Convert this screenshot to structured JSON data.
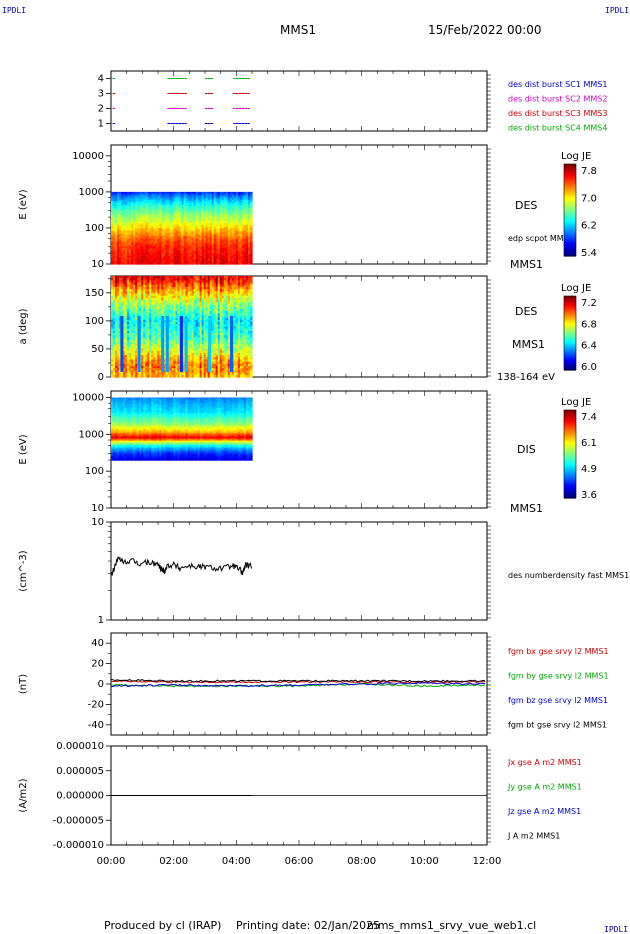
{
  "header": {
    "corner_tl": "IPDLI",
    "corner_tr": "IPDLI",
    "corner_br": "IPDLI",
    "spacecraft": "MMS1",
    "date": "15/Feb/2022 00:00"
  },
  "footer": {
    "producer": "Produced by cl (IRAP)",
    "printing": "Printing date: 02/Jan/2025",
    "filename": "mms_mms1_srvy_vue_web1.cl"
  },
  "time_axis": {
    "range_hours": [
      0,
      12
    ],
    "ticks": [
      "00:00",
      "02:00",
      "04:00",
      "06:00",
      "08:00",
      "10:00",
      "12:00"
    ],
    "data_end_hours": 4.5
  },
  "chart_data": [
    {
      "type": "scatter",
      "panel": "burst-availability",
      "ylim": [
        0.5,
        4.5
      ],
      "yticks": [
        "1",
        "2",
        "3",
        "4"
      ],
      "series": [
        {
          "name": "des dist burst SC1 MMS1",
          "color": "#0000cc",
          "y": 1,
          "segments": [
            [
              0.05,
              0.1
            ],
            [
              1.8,
              2.4
            ],
            [
              3.0,
              3.2
            ],
            [
              3.9,
              4.4
            ]
          ]
        },
        {
          "name": "des dist burst SC2 MMS2",
          "color": "#cc00cc",
          "y": 2,
          "segments": [
            [
              0.05,
              0.1
            ],
            [
              1.8,
              2.4
            ],
            [
              3.0,
              3.2
            ],
            [
              3.9,
              4.4
            ]
          ]
        },
        {
          "name": "des dist burst SC3 MMS3",
          "color": "#cc0000",
          "y": 3,
          "segments": [
            [
              0.05,
              0.1
            ],
            [
              1.8,
              2.4
            ],
            [
              3.0,
              3.2
            ],
            [
              3.9,
              4.4
            ]
          ]
        },
        {
          "name": "des dist burst SC4 MMS4",
          "color": "#00aa00",
          "y": 4,
          "segments": [
            [
              0.05,
              0.1
            ],
            [
              1.8,
              2.4
            ],
            [
              3.0,
              3.2
            ],
            [
              3.9,
              4.4
            ]
          ]
        }
      ]
    },
    {
      "type": "heatmap",
      "panel": "des-energy-spectrogram",
      "ylabel": "E (eV)",
      "yscale": "log",
      "ylim": [
        10,
        20000
      ],
      "yticks": [
        "10",
        "100",
        "1000",
        "10000"
      ],
      "instrument": "DES",
      "overlay_label": "edp scpot MMS1",
      "spacecraft": "MMS1",
      "colorbar": {
        "title": "Log JE",
        "ticks": [
          "7.8",
          "7.0",
          "6.2",
          "5.4"
        ],
        "range": [
          5.4,
          8.0
        ]
      },
      "band_edges_eV": [
        10,
        1000
      ],
      "profile": [
        [
          10,
          7.7
        ],
        [
          40,
          7.5
        ],
        [
          80,
          7.2
        ],
        [
          150,
          6.9
        ],
        [
          300,
          6.6
        ],
        [
          600,
          6.2
        ],
        [
          1000,
          5.8
        ]
      ]
    },
    {
      "type": "heatmap",
      "panel": "des-pitch-angle",
      "ylabel": "a (deg)",
      "ylim": [
        0,
        180
      ],
      "yticks": [
        "0",
        "50",
        "100",
        "150"
      ],
      "instrument": "DES",
      "spacecraft": "MMS1",
      "energy_range": "138-164 eV",
      "colorbar": {
        "title": "Log JE",
        "ticks": [
          "7.2",
          "6.8",
          "6.4",
          "6.0"
        ],
        "range": [
          6.0,
          7.3
        ]
      },
      "profile": [
        [
          0,
          6.9
        ],
        [
          20,
          7.0
        ],
        [
          45,
          6.8
        ],
        [
          70,
          6.6
        ],
        [
          100,
          6.5
        ],
        [
          130,
          6.7
        ],
        [
          160,
          7.0
        ],
        [
          180,
          7.2
        ]
      ]
    },
    {
      "type": "heatmap",
      "panel": "dis-energy-spectrogram",
      "ylabel": "E (eV)",
      "yscale": "log",
      "ylim": [
        10,
        15000
      ],
      "yticks": [
        "10",
        "100",
        "1000",
        "10000"
      ],
      "instrument": "DIS",
      "spacecraft": "MMS1",
      "colorbar": {
        "title": "Log JE",
        "ticks": [
          "7.4",
          "6.1",
          "4.9",
          "3.6"
        ],
        "range": [
          3.6,
          7.6
        ]
      },
      "band_edges_eV": [
        200,
        10000
      ],
      "profile": [
        [
          200,
          4.0
        ],
        [
          300,
          4.3
        ],
        [
          500,
          5.2
        ],
        [
          800,
          7.2
        ],
        [
          1200,
          6.3
        ],
        [
          2000,
          5.6
        ],
        [
          4000,
          5.0
        ],
        [
          10000,
          4.6
        ]
      ]
    },
    {
      "type": "line",
      "panel": "density",
      "ylabel": "(cm^-3)",
      "yscale": "log",
      "ylim": [
        1,
        10
      ],
      "yticks": [
        "1",
        "10"
      ],
      "series": [
        {
          "name": "des numberdensity fast MMS1",
          "color": "#000000",
          "x": [
            0.0,
            0.1,
            0.2,
            0.3,
            0.5,
            0.7,
            0.9,
            1.1,
            1.3,
            1.5,
            1.6,
            1.7,
            1.8,
            2.0,
            2.2,
            2.5,
            2.8,
            3.0,
            3.3,
            3.6,
            3.9,
            4.1,
            4.2,
            4.3,
            4.4,
            4.5
          ],
          "y": [
            2.8,
            3.3,
            4.2,
            4.1,
            3.9,
            4.0,
            3.7,
            3.9,
            3.8,
            3.7,
            3.3,
            3.2,
            3.6,
            3.7,
            3.4,
            3.6,
            3.5,
            3.5,
            3.4,
            3.4,
            3.6,
            3.3,
            3.0,
            3.7,
            3.5,
            3.6
          ]
        }
      ]
    },
    {
      "type": "line",
      "panel": "magnetic-field",
      "ylabel": "(nT)",
      "ylim": [
        -50,
        50
      ],
      "yticks": [
        "-40",
        "-20",
        "0",
        "20",
        "40"
      ],
      "series": [
        {
          "name": "fgm bx gse srvy l2 MMS1",
          "color": "#cc0000",
          "x": [
            0,
            2,
            4,
            6,
            8,
            10,
            12
          ],
          "y": [
            3,
            2,
            2,
            2,
            2,
            2,
            2
          ]
        },
        {
          "name": "fgm by gse srvy l2 MMS1",
          "color": "#00aa00",
          "x": [
            0,
            2,
            4,
            6,
            8,
            10,
            12
          ],
          "y": [
            -1,
            -2,
            -2,
            -2,
            0,
            -2,
            -1
          ]
        },
        {
          "name": "fgm bz gse srvy l2 MMS1",
          "color": "#0000cc",
          "x": [
            0,
            2,
            4,
            6,
            8,
            10,
            12
          ],
          "y": [
            -2,
            -1,
            -2,
            -1,
            0,
            1,
            0
          ]
        },
        {
          "name": "fgm bt gse srvy l2 MMS1",
          "color": "#000000",
          "x": [
            0,
            2,
            4,
            6,
            8,
            10,
            12
          ],
          "y": [
            4,
            3,
            3,
            3,
            3,
            3,
            3
          ]
        }
      ]
    },
    {
      "type": "line",
      "panel": "current-density",
      "ylabel": "(A/m2)",
      "ylim": [
        -1e-05,
        1e-05
      ],
      "yticks": [
        "0.000010",
        "0.000005",
        "0.000000",
        "-0.000005",
        "-0.000010"
      ],
      "series": [
        {
          "name": "Jx gse A m2 MMS1",
          "color": "#cc0000",
          "x": [
            0,
            4.5
          ],
          "y": [
            0,
            0
          ]
        },
        {
          "name": "Jy gse A m2 MMS1",
          "color": "#00aa00",
          "x": [
            0,
            4.5
          ],
          "y": [
            0,
            0
          ]
        },
        {
          "name": "Jz gse A m2 MMS1",
          "color": "#0000cc",
          "x": [
            0,
            4.5
          ],
          "y": [
            0,
            0
          ]
        },
        {
          "name": "J A m2 MMS1",
          "color": "#000000",
          "x": [
            0,
            4.5
          ],
          "y": [
            0,
            0
          ]
        }
      ]
    }
  ]
}
